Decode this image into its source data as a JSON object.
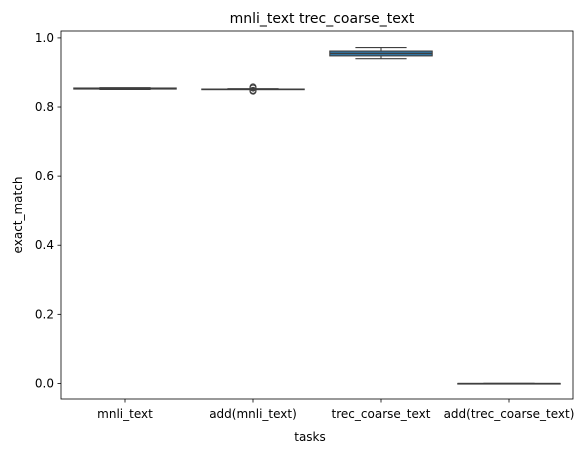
{
  "chart_data": {
    "type": "box",
    "title": "mnli_text trec_coarse_text",
    "xlabel": "tasks",
    "ylabel": "exact_match",
    "ylim": [
      -0.045,
      1.02
    ],
    "yticks": [
      0.0,
      0.2,
      0.4,
      0.6,
      0.8,
      1.0
    ],
    "ytick_labels": [
      "0.0",
      "0.2",
      "0.4",
      "0.6",
      "0.8",
      "1.0"
    ],
    "grid": false,
    "legend": "none",
    "categories": [
      "mnli_text",
      "add(mnli_text)",
      "trec_coarse_text",
      "add(trec_coarse_text)"
    ],
    "boxes": [
      {
        "category": "mnli_text",
        "whisker_low": 0.851,
        "q1": 0.852,
        "median": 0.853,
        "q3": 0.855,
        "whisker_high": 0.856,
        "outliers": []
      },
      {
        "category": "add(mnli_text)",
        "whisker_low": 0.851,
        "q1": 0.851,
        "median": 0.852,
        "q3": 0.852,
        "whisker_high": 0.853,
        "outliers": [
          0.846,
          0.848,
          0.855,
          0.858
        ]
      },
      {
        "category": "trec_coarse_text",
        "whisker_low": 0.94,
        "q1": 0.948,
        "median": 0.955,
        "q3": 0.962,
        "whisker_high": 0.972,
        "outliers": []
      },
      {
        "category": "add(trec_coarse_text)",
        "whisker_low": 0.0,
        "q1": 0.0,
        "median": 0.0,
        "q3": 0.0,
        "whisker_high": 0.0,
        "outliers": []
      }
    ],
    "colors": {
      "box_fill": "#3274a1",
      "line": "#3f3f3f",
      "axis": "#000000"
    }
  }
}
